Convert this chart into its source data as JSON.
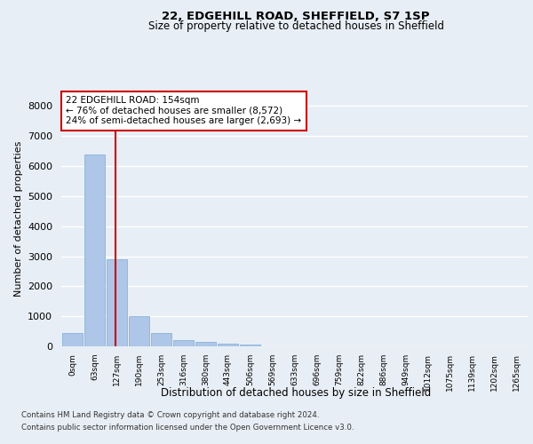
{
  "title1": "22, EDGEHILL ROAD, SHEFFIELD, S7 1SP",
  "title2": "Size of property relative to detached houses in Sheffield",
  "xlabel": "Distribution of detached houses by size in Sheffield",
  "ylabel": "Number of detached properties",
  "footer1": "Contains HM Land Registry data © Crown copyright and database right 2024.",
  "footer2": "Contains public sector information licensed under the Open Government Licence v3.0.",
  "annotation_line1": "22 EDGEHILL ROAD: 154sqm",
  "annotation_line2": "← 76% of detached houses are smaller (8,572)",
  "annotation_line3": "24% of semi-detached houses are larger (2,693) →",
  "bar_labels": [
    "0sqm",
    "63sqm",
    "127sqm",
    "190sqm",
    "253sqm",
    "316sqm",
    "380sqm",
    "443sqm",
    "506sqm",
    "569sqm",
    "633sqm",
    "696sqm",
    "759sqm",
    "822sqm",
    "886sqm",
    "949sqm",
    "1012sqm",
    "1075sqm",
    "1139sqm",
    "1202sqm",
    "1265sqm"
  ],
  "bar_values": [
    450,
    6400,
    2900,
    1000,
    450,
    200,
    150,
    100,
    70,
    0,
    0,
    0,
    0,
    0,
    0,
    0,
    0,
    0,
    0,
    0,
    0
  ],
  "bar_color": "#aec6e8",
  "bar_edge_color": "#7aadd4",
  "vline_color": "#cc0000",
  "ylim": [
    0,
    8500
  ],
  "yticks": [
    0,
    1000,
    2000,
    3000,
    4000,
    5000,
    6000,
    7000,
    8000
  ],
  "bg_color": "#e8eef5",
  "grid_color": "#ffffff",
  "annotation_box_color": "#cc0000"
}
